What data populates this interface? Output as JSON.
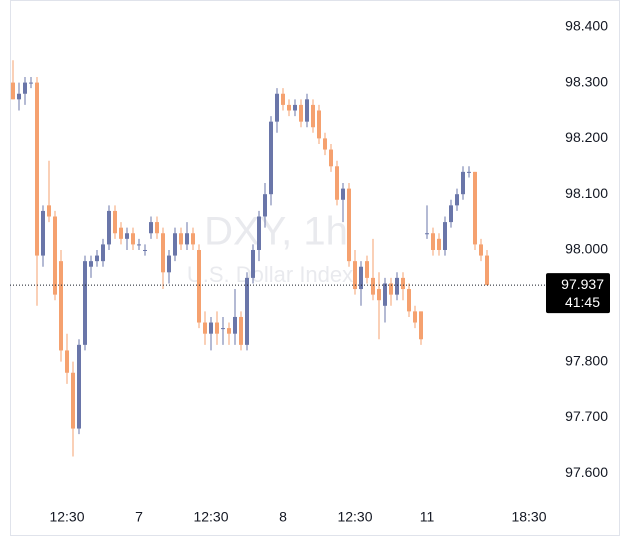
{
  "chart_data": {
    "type": "candlestick",
    "title": "DXY, 1h",
    "subtitle": "U.S. Dollar Index",
    "up_color": "#6a76a9",
    "down_color": "#f5a16f",
    "categories": [
      null,
      null,
      null,
      null,
      null,
      null,
      null,
      null,
      null,
      "12:30",
      null,
      null,
      null,
      null,
      null,
      null,
      null,
      null,
      null,
      null,
      null,
      "7",
      null,
      null,
      null,
      null,
      null,
      null,
      null,
      null,
      null,
      null,
      null,
      "12:30",
      null,
      null,
      null,
      null,
      null,
      null,
      null,
      null,
      null,
      null,
      null,
      "8",
      null,
      null,
      null,
      null,
      null,
      null,
      null,
      null,
      null,
      null,
      null,
      "12:30",
      null,
      null,
      null,
      null,
      null,
      null,
      null,
      null,
      null,
      null,
      null,
      "11",
      null,
      null,
      null,
      null,
      null,
      null,
      null,
      null,
      null,
      null,
      null,
      null,
      null,
      null,
      null,
      null,
      "18:30",
      null,
      null
    ],
    "open": [
      98.3,
      98.27,
      98.28,
      98.3,
      98.3,
      97.99,
      98.08,
      98.06,
      97.98,
      97.82,
      97.78,
      97.68,
      97.83,
      97.97,
      97.98,
      97.98,
      98.01,
      98.07,
      98.04,
      98.02,
      98.03,
      98.01,
      98.0,
      98.03,
      98.05,
      98.03,
      97.96,
      97.99,
      98.03,
      98.01,
      98.03,
      98.0,
      97.87,
      97.85,
      97.87,
      97.86,
      97.86,
      97.85,
      97.88,
      97.83,
      97.95,
      98.0,
      98.06,
      98.1,
      98.23,
      98.28,
      98.26,
      98.25,
      98.26,
      98.23,
      98.26,
      98.25,
      98.2,
      98.18,
      98.15,
      98.09,
      98.11,
      97.98,
      97.93,
      97.98,
      97.95,
      97.93,
      97.9,
      97.94,
      97.92,
      97.95,
      97.93,
      97.89,
      97.89,
      98.03,
      98.03,
      98.02,
      98.0,
      98.05,
      98.08,
      98.1,
      98.14,
      98.14,
      98.01,
      97.99,
      null,
      null,
      null,
      null,
      null,
      null,
      null,
      null,
      null
    ],
    "high": [
      98.34,
      98.3,
      98.31,
      98.31,
      98.31,
      98.08,
      98.16,
      98.07,
      98.0,
      97.85,
      97.8,
      97.84,
      97.99,
      97.99,
      98.0,
      98.02,
      98.08,
      98.08,
      98.05,
      98.04,
      98.04,
      98.02,
      98.01,
      98.06,
      98.06,
      98.04,
      98.0,
      98.04,
      98.04,
      98.05,
      98.04,
      98.01,
      97.89,
      97.88,
      97.89,
      97.88,
      97.87,
      97.93,
      97.89,
      97.96,
      98.01,
      98.07,
      98.12,
      98.24,
      98.29,
      98.29,
      98.27,
      98.27,
      98.27,
      98.28,
      98.27,
      98.26,
      98.21,
      98.19,
      98.16,
      98.12,
      98.12,
      98.0,
      97.98,
      97.99,
      98.02,
      97.96,
      97.95,
      97.95,
      97.96,
      97.96,
      97.94,
      97.9,
      97.89,
      98.08,
      98.04,
      98.03,
      98.06,
      98.09,
      98.11,
      98.15,
      98.15,
      98.14,
      98.02,
      98.0,
      null,
      null,
      null,
      null,
      null,
      null,
      null,
      null,
      null
    ],
    "low": [
      98.27,
      98.25,
      98.26,
      98.29,
      97.9,
      97.97,
      98.05,
      97.91,
      97.8,
      97.76,
      97.63,
      97.67,
      97.82,
      97.95,
      97.97,
      97.97,
      98.0,
      98.02,
      98.01,
      98.0,
      98.0,
      98.0,
      97.99,
      98.02,
      98.02,
      97.93,
      97.94,
      97.98,
      98.0,
      98.0,
      98.0,
      97.86,
      97.83,
      97.82,
      97.83,
      97.83,
      97.83,
      97.83,
      97.82,
      97.82,
      97.94,
      97.98,
      98.04,
      98.08,
      98.21,
      98.25,
      98.24,
      98.24,
      98.22,
      98.22,
      98.21,
      98.19,
      98.17,
      98.14,
      98.08,
      98.05,
      97.97,
      97.92,
      97.9,
      97.94,
      97.91,
      97.84,
      97.87,
      97.9,
      97.91,
      97.91,
      97.88,
      97.86,
      97.83,
      98.02,
      97.99,
      97.99,
      97.99,
      98.04,
      98.07,
      98.09,
      98.13,
      98.0,
      97.98,
      97.937,
      null,
      null,
      null,
      null,
      null,
      null,
      null,
      null,
      null
    ],
    "close": [
      98.27,
      98.28,
      98.3,
      98.3,
      97.99,
      98.07,
      98.06,
      97.92,
      97.82,
      97.78,
      97.68,
      97.83,
      97.98,
      97.98,
      97.99,
      98.01,
      98.07,
      98.03,
      98.02,
      98.03,
      98.01,
      98.01,
      98.0,
      98.05,
      98.03,
      97.96,
      97.99,
      98.03,
      98.01,
      98.03,
      98.01,
      97.87,
      97.85,
      97.87,
      97.85,
      97.86,
      97.85,
      97.88,
      97.83,
      97.95,
      98.0,
      98.06,
      98.1,
      98.23,
      98.28,
      98.26,
      98.25,
      98.26,
      98.23,
      98.27,
      98.22,
      98.2,
      98.18,
      98.15,
      98.09,
      98.11,
      97.98,
      97.93,
      97.97,
      97.95,
      97.92,
      97.91,
      97.94,
      97.92,
      97.95,
      97.93,
      97.89,
      97.87,
      97.84,
      98.03,
      98.0,
      98.0,
      98.05,
      98.08,
      98.1,
      98.14,
      98.14,
      98.01,
      97.99,
      97.937,
      null,
      null,
      null,
      null,
      null,
      null,
      null,
      null,
      null
    ],
    "ylim": [
      97.543,
      98.448
    ],
    "yticks": [
      {
        "value": 97.6,
        "label": "97.600"
      },
      {
        "value": 97.7,
        "label": "97.700"
      },
      {
        "value": 97.8,
        "label": "97.800"
      },
      {
        "value": 97.9,
        "label": "97.900"
      },
      {
        "value": 98.0,
        "label": "98.000"
      },
      {
        "value": 98.1,
        "label": "98.100"
      },
      {
        "value": 98.2,
        "label": "98.200"
      },
      {
        "value": 98.3,
        "label": "98.300"
      },
      {
        "value": 98.4,
        "label": "98.400"
      }
    ],
    "last_price": 97.937,
    "countdown": "41:45"
  }
}
